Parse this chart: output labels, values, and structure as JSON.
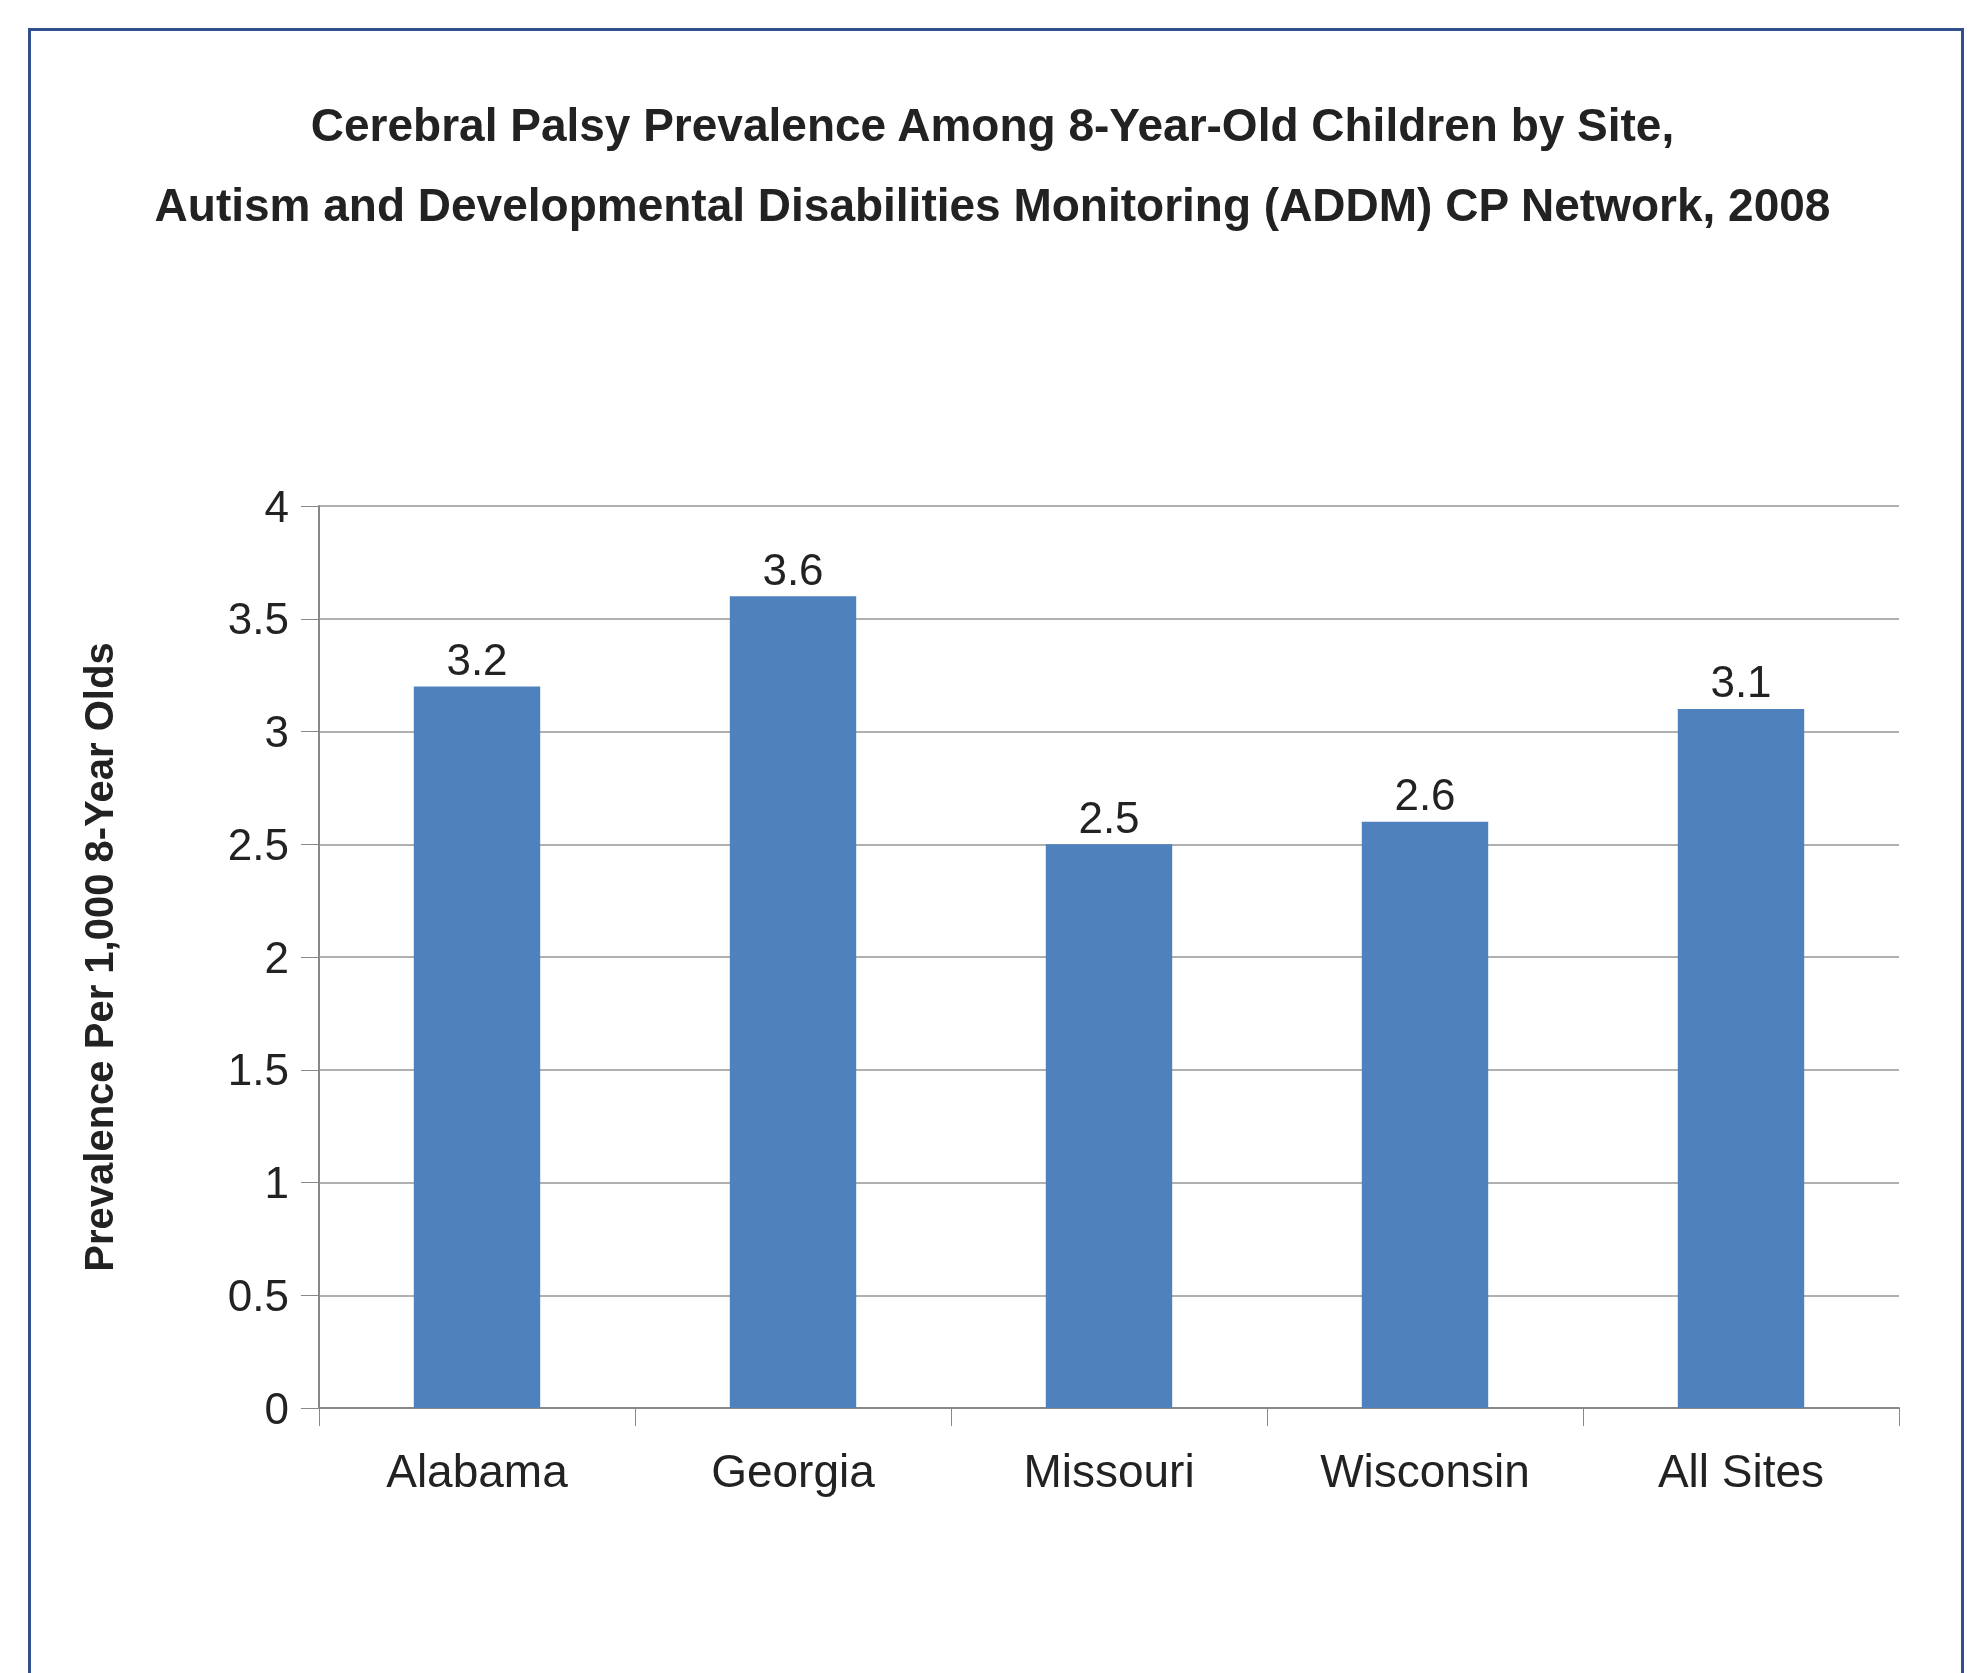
{
  "chart_data": {
    "type": "bar",
    "title": "Cerebral Palsy Prevalence Among 8-Year-Old Children by Site,\nAutism and Developmental Disabilities Monitoring (ADDM) CP Network, 2008",
    "ylabel": "Prevalence Per 1,000 8-Year Olds",
    "categories": [
      "Alabama",
      "Georgia",
      "Missouri",
      "Wisconsin",
      "All Sites"
    ],
    "values": [
      3.2,
      3.6,
      2.5,
      2.6,
      3.1
    ],
    "color": "#4f81bd",
    "ylim": [
      0,
      4
    ],
    "yticks": [
      0,
      0.5,
      1,
      1.5,
      2,
      2.5,
      3,
      3.5,
      4
    ],
    "grid": true,
    "data_labels": true
  }
}
